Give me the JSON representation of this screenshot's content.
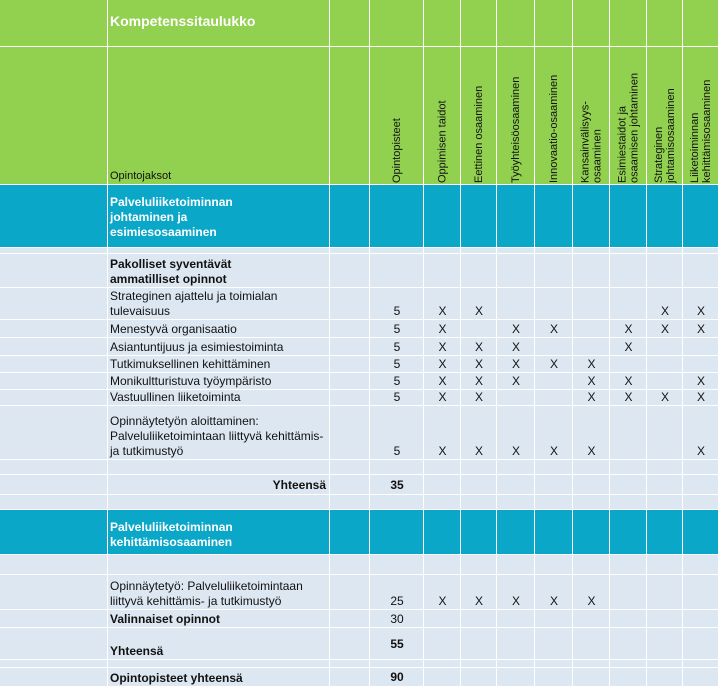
{
  "title": "Kompetenssitaulukko",
  "column_label": "Opintojaksot",
  "columns": [
    "Opintopisteet",
    "Oppimisen taidot",
    "Eettinen osaaminen",
    "Työyhteisöosaaminen",
    "Innovaatio-osaaminen",
    "Kansainvälisyys-osaaminen",
    "Esimiestaidot ja osaamisen johtaminen",
    "Strateginen johtamisosaaminen",
    "Liiketoiminnan kehittämisosaaminen"
  ],
  "rows": [
    {
      "label": "Palveluliiketoiminnan johtaminen ja esimiesosaaminen"
    },
    {
      "label": "Pakolliset syventävät ammatilliset opinnot"
    },
    {
      "label": "Strateginen ajattelu ja toimialan tulevaisuus",
      "points": 5,
      "marks": [
        "X",
        "X",
        null,
        null,
        null,
        null,
        "X",
        "X"
      ]
    },
    {
      "label": "Menestyvä organisaatio",
      "points": 5,
      "marks": [
        "X",
        null,
        "X",
        "X",
        null,
        "X",
        "X",
        "X"
      ]
    },
    {
      "label": "Asiantuntijuus ja esimiestoiminta",
      "points": 5,
      "marks": [
        "X",
        "X",
        "X",
        null,
        null,
        "X",
        null,
        null
      ]
    },
    {
      "label": "Tutkimuksellinen kehittäminen",
      "points": 5,
      "marks": [
        "X",
        "X",
        "X",
        "X",
        "X",
        null,
        null,
        null
      ]
    },
    {
      "label": "Monikultturistuva työympäristo",
      "points": 5,
      "marks": [
        "X",
        "X",
        "X",
        null,
        "X",
        "X",
        null,
        "X"
      ]
    },
    {
      "label": "Vastuullinen liiketoiminta",
      "points": 5,
      "marks": [
        "X",
        "X",
        null,
        null,
        "X",
        "X",
        "X",
        "X"
      ]
    },
    {
      "label": "Opinnäytetyön aloittaminen: Palveluliiketoimintaan liittyvä kehittämis- ja tutkimustyö",
      "points": 5,
      "marks": [
        "X",
        "X",
        "X",
        "X",
        "X",
        null,
        null,
        "X"
      ]
    },
    {
      "label": "Yhteensä",
      "points": 35
    },
    {
      "label": "Palveluliiketoiminnan kehittämisosaaminen"
    },
    {
      "label": "Opinnäytetyö: Palveluliiketoimintaan liittyvä kehittämis- ja tutkimustyö",
      "points": 25,
      "marks": [
        "X",
        "X",
        "X",
        "X",
        "X",
        null,
        null,
        null
      ]
    },
    {
      "label": "Valinnaiset opinnot",
      "points": 30
    },
    {
      "label": "Yhteensä",
      "points": 55
    },
    {
      "label": "Opintopisteet yhteensä",
      "points": 90
    }
  ]
}
